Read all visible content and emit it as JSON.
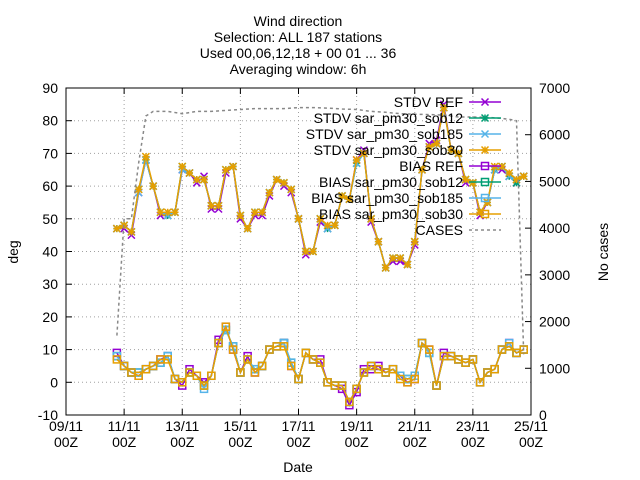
{
  "chart_data": {
    "type": "line",
    "title_lines": [
      "Wind direction",
      "Selection: ALL     187 stations",
      "Used 00,06,12,18 + 00 01 ... 36",
      "Averaging window:  6h"
    ],
    "xlabel": "Date",
    "ylabel": "deg",
    "y2label": "No cases",
    "x_ticks": [
      {
        "value": 0,
        "line1": "09/11",
        "line2": "00Z"
      },
      {
        "value": 2,
        "line1": "11/11",
        "line2": "00Z"
      },
      {
        "value": 4,
        "line1": "13/11",
        "line2": "00Z"
      },
      {
        "value": 6,
        "line1": "15/11",
        "line2": "00Z"
      },
      {
        "value": 8,
        "line1": "17/11",
        "line2": "00Z"
      },
      {
        "value": 10,
        "line1": "19/11",
        "line2": "00Z"
      },
      {
        "value": 12,
        "line1": "21/11",
        "line2": "00Z"
      },
      {
        "value": 14,
        "line1": "23/11",
        "line2": "00Z"
      },
      {
        "value": 16,
        "line1": "25/11",
        "line2": "00Z"
      }
    ],
    "xlim": [
      0,
      16
    ],
    "ylim": [
      -10,
      90
    ],
    "y_ticks": [
      -10,
      0,
      10,
      20,
      30,
      40,
      50,
      60,
      70,
      80,
      90
    ],
    "y2lim": [
      0,
      7000
    ],
    "y2_ticks": [
      0,
      1000,
      2000,
      3000,
      4000,
      5000,
      6000,
      7000
    ],
    "grid": true,
    "legend_placement": "top-right",
    "x_dates_days_since_0911_00Z": [
      1.75,
      2.0,
      2.25,
      2.5,
      2.75,
      3.0,
      3.25,
      3.5,
      3.75,
      4.0,
      4.25,
      4.5,
      4.75,
      5.0,
      5.25,
      5.5,
      5.75,
      6.0,
      6.25,
      6.5,
      6.75,
      7.0,
      7.25,
      7.5,
      7.75,
      8.0,
      8.25,
      8.5,
      8.75,
      9.0,
      9.25,
      9.5,
      9.75,
      10.0,
      10.25,
      10.5,
      10.75,
      11.0,
      11.25,
      11.5,
      11.75,
      12.0,
      12.25,
      12.5,
      12.75,
      13.0,
      13.25,
      13.5,
      13.75,
      14.0,
      14.25,
      14.5,
      14.75,
      15.0,
      15.25,
      15.5,
      15.75
    ],
    "series": [
      {
        "name": "STDV REF",
        "color": "#9400d3",
        "marker": "x",
        "axis": "y",
        "values": [
          47,
          47,
          45,
          58,
          68,
          60,
          51,
          51,
          52,
          65,
          64,
          61,
          63,
          53,
          53,
          64,
          66,
          50,
          47,
          51,
          51,
          57,
          62,
          60,
          58,
          50,
          39,
          40,
          49,
          47,
          48,
          57,
          56,
          68,
          71,
          49,
          43,
          35,
          37,
          37,
          36,
          42,
          65,
          73,
          74,
          85,
          71,
          70,
          61,
          61,
          51,
          55,
          65,
          65,
          63,
          61,
          63
        ]
      },
      {
        "name": "STDV sar_pm30_sob12",
        "color": "#009e73",
        "marker": "star",
        "axis": "y",
        "values": [
          47,
          48,
          46,
          59,
          68,
          60,
          52,
          51,
          52,
          66,
          64,
          62,
          62,
          54,
          54,
          65,
          66,
          51,
          47,
          52,
          52,
          58,
          62,
          61,
          59,
          50,
          40,
          40,
          50,
          47,
          48,
          57,
          56,
          67,
          70,
          50,
          43,
          35,
          38,
          38,
          36,
          43,
          65,
          72,
          73,
          84,
          71,
          70,
          62,
          61,
          52,
          55,
          65,
          66,
          63,
          61,
          63
        ]
      },
      {
        "name": "STDV sar_pm30_sob185",
        "color": "#56b4e9",
        "marker": "x",
        "axis": "y",
        "values": [
          47,
          48,
          46,
          58,
          68,
          60,
          52,
          51,
          52,
          65,
          64,
          62,
          62,
          54,
          54,
          65,
          66,
          51,
          47,
          52,
          52,
          58,
          62,
          61,
          59,
          50,
          40,
          40,
          50,
          47,
          48,
          57,
          56,
          67,
          70,
          50,
          43,
          35,
          38,
          38,
          36,
          43,
          65,
          72,
          73,
          84,
          71,
          70,
          62,
          61,
          52,
          55,
          65,
          66,
          63,
          62,
          63
        ]
      },
      {
        "name": "STDV sar_pm30_sob30",
        "color": "#e69f00",
        "marker": "star",
        "axis": "y",
        "values": [
          47,
          48,
          46,
          59,
          69,
          60,
          52,
          52,
          52,
          66,
          64,
          62,
          62,
          54,
          54,
          65,
          66,
          51,
          47,
          52,
          52,
          58,
          62,
          61,
          59,
          50,
          40,
          40,
          50,
          48,
          48,
          57,
          56,
          68,
          70,
          50,
          43,
          35,
          38,
          38,
          36,
          43,
          65,
          72,
          73,
          84,
          71,
          70,
          62,
          61,
          52,
          55,
          66,
          66,
          64,
          62,
          63
        ]
      },
      {
        "name": "BIAS REF",
        "color": "#9400d3",
        "marker": "square",
        "axis": "y",
        "values": [
          9,
          5,
          3,
          2,
          4,
          5,
          7,
          8,
          1,
          -1,
          4,
          2,
          0,
          2,
          13,
          17,
          10,
          3,
          8,
          3,
          5,
          10,
          11,
          12,
          5,
          1,
          9,
          7,
          7,
          0,
          -1,
          -2,
          -7,
          -3,
          4,
          4,
          5,
          3,
          4,
          2,
          0,
          1,
          12,
          10,
          -1,
          9,
          8,
          7,
          6,
          7,
          0,
          3,
          4,
          10,
          12,
          9,
          10
        ]
      },
      {
        "name": "BIAS sar_pm30_sob12",
        "color": "#009e73",
        "marker": "square",
        "axis": "y",
        "values": [
          8,
          5,
          3,
          3,
          4,
          5,
          6,
          8,
          1,
          0,
          3,
          2,
          -1,
          2,
          12,
          16,
          11,
          3,
          7,
          4,
          5,
          10,
          11,
          12,
          6,
          1,
          9,
          7,
          6,
          0,
          -1,
          -1,
          -6,
          -2,
          3,
          5,
          4,
          3,
          4,
          2,
          1,
          2,
          12,
          9,
          -1,
          8,
          8,
          7,
          6,
          7,
          0,
          3,
          4,
          10,
          11,
          9,
          10
        ]
      },
      {
        "name": "BIAS sar_pm30_sob185",
        "color": "#56b4e9",
        "marker": "square",
        "axis": "y",
        "values": [
          8,
          5,
          3,
          3,
          4,
          5,
          6,
          8,
          1,
          0,
          3,
          2,
          -2,
          2,
          12,
          16,
          11,
          3,
          7,
          4,
          5,
          10,
          11,
          12,
          6,
          1,
          9,
          7,
          6,
          0,
          -1,
          -1,
          -6,
          -2,
          3,
          5,
          4,
          3,
          4,
          2,
          1,
          2,
          12,
          9,
          -1,
          8,
          8,
          7,
          6,
          7,
          0,
          3,
          4,
          10,
          12,
          9,
          10
        ]
      },
      {
        "name": "BIAS sar_pm30_sob30",
        "color": "#e69f00",
        "marker": "square",
        "axis": "y",
        "values": [
          7,
          5,
          3,
          2,
          4,
          5,
          7,
          7,
          1,
          0,
          3,
          2,
          -1,
          2,
          12,
          17,
          10,
          3,
          7,
          3,
          5,
          10,
          11,
          11,
          5,
          1,
          9,
          7,
          6,
          0,
          -1,
          -1,
          -6,
          -2,
          3,
          5,
          4,
          3,
          4,
          1,
          0,
          1,
          12,
          10,
          -1,
          8,
          8,
          7,
          6,
          7,
          0,
          3,
          4,
          10,
          11,
          9,
          10
        ]
      },
      {
        "name": "CASES",
        "color": "#888888",
        "marker": "none",
        "dash": true,
        "axis": "y2",
        "x": [
          1.75,
          2.0,
          2.25,
          2.5,
          2.75,
          3.0,
          3.5,
          4.0,
          4.5,
          5.0,
          5.5,
          6.0,
          6.5,
          7.0,
          7.5,
          8.0,
          8.5,
          9.0,
          9.5,
          10.0,
          10.5,
          11.0,
          11.5,
          12.0,
          12.5,
          13.0,
          13.5,
          14.0,
          14.5,
          15.0,
          15.25,
          15.5,
          15.75
        ],
        "values": [
          1700,
          4200,
          4200,
          5400,
          6400,
          6500,
          6500,
          6450,
          6500,
          6500,
          6520,
          6540,
          6560,
          6560,
          6560,
          6580,
          6580,
          6570,
          6550,
          6540,
          6500,
          6480,
          6450,
          6440,
          6430,
          6420,
          6380,
          6380,
          6370,
          6350,
          6330,
          6300,
          1300
        ]
      }
    ]
  }
}
